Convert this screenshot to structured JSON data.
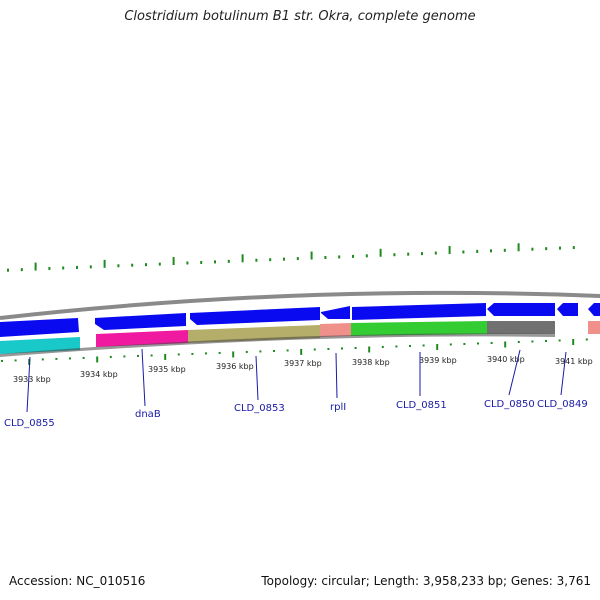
{
  "title": "Clostridium botulinum B1 str. Okra, complete genome",
  "footer": {
    "accession": "Accession: NC_010516",
    "summary": "Topology: circular; Length: 3,958,233 bp; Genes: 3,761"
  },
  "colors": {
    "forward_strand": "#0a0af0",
    "backbone": "#8a8a8a",
    "gc_ticks": "#1f8a1f",
    "label_text": "#1a1aa6",
    "cyan_gene": "#19c8c8",
    "magenta_gene": "#f01aa0",
    "olive_gene": "#b5ad6a",
    "salmon_gene": "#f0908a",
    "green_gene": "#33cc33",
    "gray_gene": "#707070"
  },
  "scale_labels": [
    "3933 kbp",
    "3934 kbp",
    "3935 kbp",
    "3936 kbp",
    "3937 kbp",
    "3938 kbp",
    "3939 kbp",
    "3940 kbp",
    "3941 kbp"
  ],
  "genes": [
    {
      "label": "CLD_0855"
    },
    {
      "label": "dnaB"
    },
    {
      "label": "CLD_0853"
    },
    {
      "label": "rplI"
    },
    {
      "label": "CLD_0851"
    },
    {
      "label": "CLD_0850"
    },
    {
      "label": "CLD_0849"
    }
  ]
}
